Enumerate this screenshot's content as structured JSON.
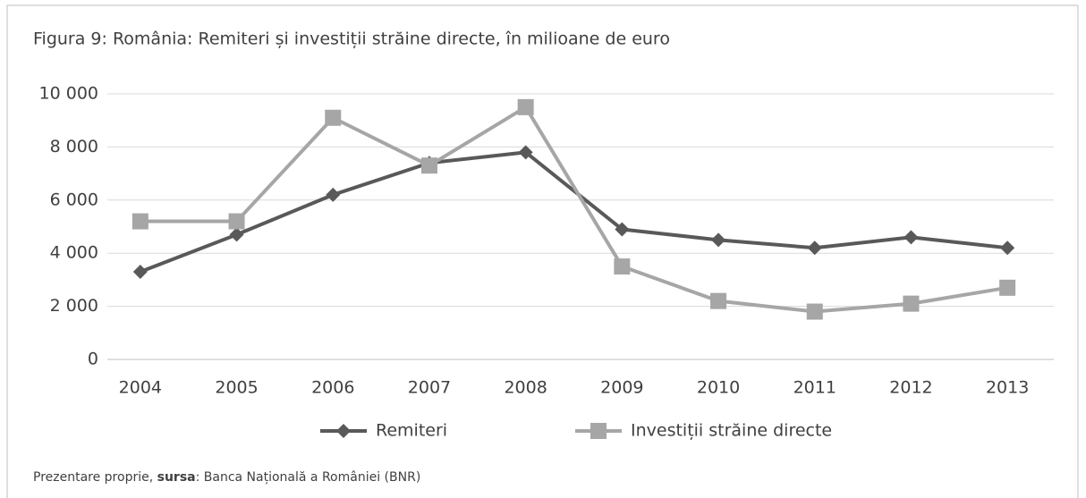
{
  "chart_data": {
    "type": "line",
    "title": "Figura 9: România: Remiteri și investiții străine directe, în milioane de euro",
    "categories": [
      "2004",
      "2005",
      "2006",
      "2007",
      "2008",
      "2009",
      "2010",
      "2011",
      "2012",
      "2013"
    ],
    "series": [
      {
        "name": "Remiteri",
        "color": "#595959",
        "marker": "diamond",
        "values": [
          3300,
          4700,
          6200,
          7400,
          7800,
          4900,
          4500,
          4200,
          4600,
          4200
        ]
      },
      {
        "name": "Investiții străine directe",
        "color": "#a6a6a6",
        "marker": "square",
        "values": [
          5200,
          5200,
          9100,
          7300,
          9500,
          3500,
          2200,
          1800,
          2100,
          2700
        ]
      }
    ],
    "ylim": [
      0,
      10000
    ],
    "yticks": [
      0,
      {
        "value": 2000,
        "label": "2 000"
      },
      {
        "value": 4000,
        "label": "4 000"
      },
      {
        "value": 6000,
        "label": "6 000"
      },
      {
        "value": 8000,
        "label": "8 000"
      },
      {
        "value": 10000,
        "label": "10 000"
      }
    ],
    "grid": true,
    "legend": "bottom",
    "source": {
      "prefix": "Prezentare proprie, ",
      "label": "sursa",
      "text": ": Banca Națională a României (BNR)"
    }
  }
}
